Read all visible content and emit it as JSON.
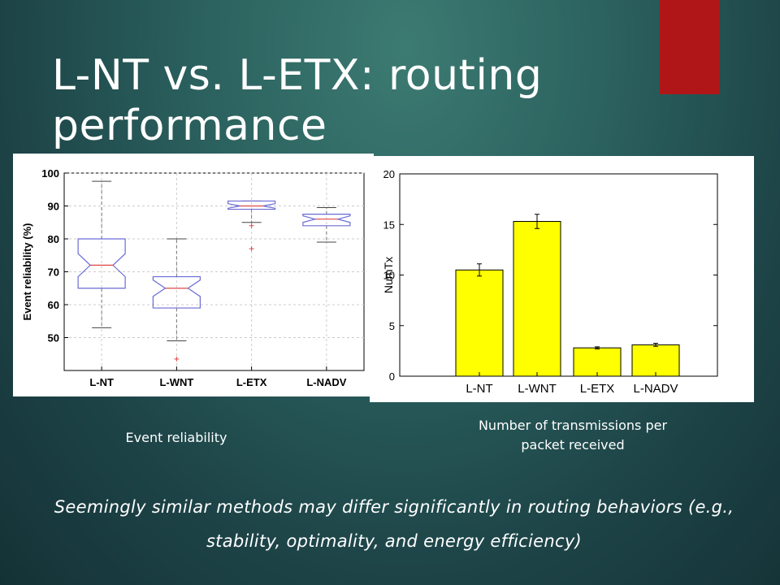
{
  "slide": {
    "title": "L-NT vs. L-ETX: routing performance",
    "accent_color": "#b01617",
    "caption_left": "Event reliability",
    "caption_right": "Number of transmissions per packet received",
    "tagline": "Seemingly similar methods may differ significantly in routing behaviors (e.g., stability, optimality, and energy efficiency)"
  },
  "chart_data": [
    {
      "type": "box",
      "ylabel": "Event reliability (%)",
      "xlabel": "",
      "ylim": [
        40,
        100
      ],
      "yticks": [
        50,
        60,
        70,
        80,
        90,
        100
      ],
      "grid": true,
      "categories": [
        "L-NT",
        "L-WNT",
        "L-ETX",
        "L-NADV"
      ],
      "boxes": [
        {
          "name": "L-NT",
          "min": 53,
          "q1": 65,
          "median": 72,
          "notch_low": 68.5,
          "notch_high": 75.5,
          "q3": 80,
          "max": 97.5,
          "outliers": []
        },
        {
          "name": "L-WNT",
          "min": 49,
          "q1": 59,
          "median": 65,
          "notch_low": 62.5,
          "notch_high": 67.5,
          "q3": 68.5,
          "max": 80,
          "outliers": [
            43.5
          ]
        },
        {
          "name": "L-ETX",
          "min": 85,
          "q1": 89,
          "median": 90,
          "notch_low": 89.3,
          "notch_high": 90.7,
          "q3": 91.5,
          "max": 91.5,
          "outliers": [
            84,
            77
          ]
        },
        {
          "name": "L-NADV",
          "min": 79,
          "q1": 84,
          "median": 86,
          "notch_low": 85,
          "notch_high": 87,
          "q3": 87.5,
          "max": 89.5,
          "outliers": []
        }
      ],
      "box_color": "#6b6bd6",
      "median_color": "#e04848",
      "whisker_color": "#777777"
    },
    {
      "type": "bar",
      "ylabel": "NumTx",
      "xlabel": "",
      "ylim": [
        0,
        20
      ],
      "yticks": [
        0,
        5,
        10,
        15,
        20
      ],
      "categories": [
        "L-NT",
        "L-WNT",
        "L-ETX",
        "L-NADV"
      ],
      "values": [
        10.5,
        15.3,
        2.8,
        3.1
      ],
      "errors": [
        0.6,
        0.7,
        0.1,
        0.15
      ],
      "bar_color": "#ffff00"
    }
  ]
}
